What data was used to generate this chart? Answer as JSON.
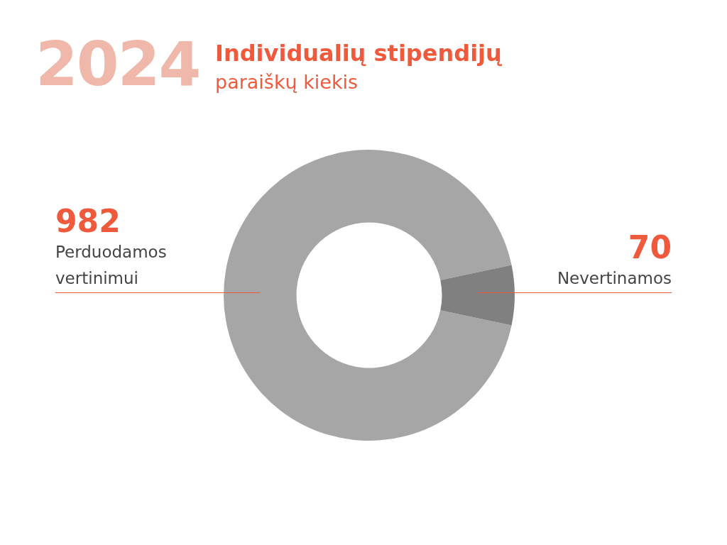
{
  "chart_data": {
    "type": "donut",
    "title": "Individualių stipendijų",
    "subtitle": "paraiškų kiekis",
    "annotations": [
      "2024"
    ],
    "categories": [
      "Perduodamos vertinimui",
      "Nevertinamos"
    ],
    "values": [
      982,
      70
    ],
    "colors": [
      "#a6a6a6",
      "#808080"
    ],
    "data_labels": true,
    "legend": false
  }
}
